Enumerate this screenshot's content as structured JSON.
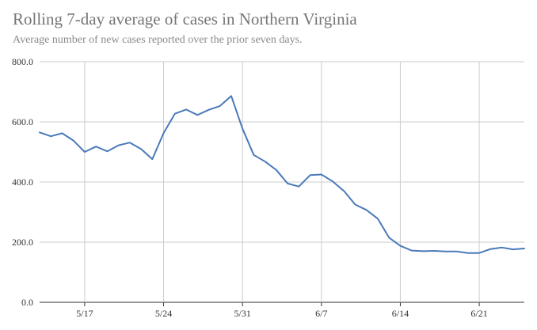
{
  "chart_data": {
    "type": "line",
    "title": "Rolling 7-day average of cases in Northern Virginia",
    "subtitle": "Average number of new cases reported over the prior seven days.",
    "xlabel": "",
    "ylabel": "",
    "ylim": [
      0,
      800
    ],
    "yticks": [
      "0.0",
      "200.0",
      "400.0",
      "600.0",
      "800.0"
    ],
    "xticks": [
      {
        "label": "5/17",
        "index": 4
      },
      {
        "label": "5/24",
        "index": 11
      },
      {
        "label": "5/31",
        "index": 18
      },
      {
        "label": "6/7",
        "index": 25
      },
      {
        "label": "6/14",
        "index": 32
      },
      {
        "label": "6/21",
        "index": 39
      }
    ],
    "grid": true,
    "legend": "none",
    "line_color": "#4a7ab9",
    "series": [
      {
        "values": [
          565,
          552,
          562,
          538,
          500,
          518,
          502,
          522,
          531,
          510,
          476,
          563,
          627,
          641,
          623,
          640,
          653,
          686,
          577,
          490,
          468,
          440,
          395,
          385,
          423,
          425,
          402,
          370,
          325,
          307,
          278,
          215,
          188,
          172,
          170,
          171,
          169,
          169,
          164,
          164,
          177,
          182,
          176,
          179
        ]
      }
    ]
  }
}
